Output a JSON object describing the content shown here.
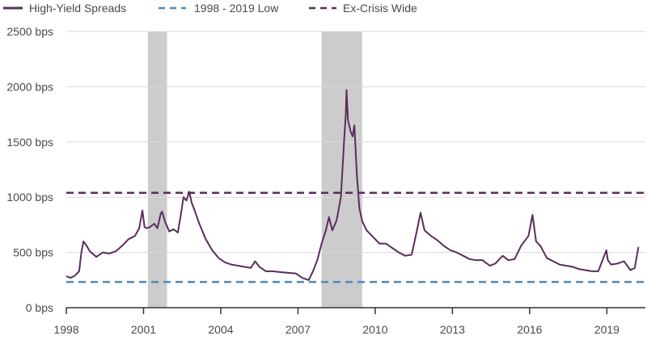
{
  "chart_data": {
    "type": "line",
    "title": "",
    "xlabel": "",
    "ylabel": "",
    "x_range": [
      "1998-01-01",
      "2020-06-30"
    ],
    "ylim": [
      0,
      2500
    ],
    "y_ticks": [
      0,
      500,
      1000,
      1500,
      2000,
      2500
    ],
    "y_tick_labels": [
      "0 bps",
      "500 bps",
      "1000 bps",
      "1500 bps",
      "2000 bps",
      "2500 bps"
    ],
    "x_ticks": [
      "1998-01-01",
      "2001-01-01",
      "2004-01-01",
      "2007-01-01",
      "2010-01-01",
      "2013-01-01",
      "2016-01-01",
      "2019-01-01"
    ],
    "x_tick_labels": [
      "1998",
      "2001",
      "2004",
      "2007",
      "2010",
      "2013",
      "2016",
      "2019"
    ],
    "grid": "horizontal",
    "legend_position": "top-left",
    "legend": [
      {
        "label": "High-Yield Spreads",
        "style": "solid",
        "color": "#5a2d5c"
      },
      {
        "label": "1998 - 2019 Low",
        "style": "dashed",
        "color": "#4a8ac0"
      },
      {
        "label": "Ex-Crisis Wide",
        "style": "dashed",
        "color": "#5a2d5c"
      }
    ],
    "recession_bands": [
      {
        "start": "2001-03-01",
        "end": "2001-11-30"
      },
      {
        "start": "2007-12-01",
        "end": "2009-06-30"
      }
    ],
    "reference_lines": [
      {
        "name": "1998 - 2019 Low",
        "value": 233,
        "color": "#4a8ac0"
      },
      {
        "name": "Ex-Crisis Wide",
        "value": 1040,
        "color": "#5a2d5c"
      }
    ],
    "colors": {
      "series": "#5a2d5c",
      "low_line": "#4a8ac0",
      "wide_line": "#5a2d5c",
      "recession": "#cccccc",
      "grid": "#d9d9d9",
      "axis": "#333333"
    },
    "series": [
      {
        "name": "High-Yield Spreads",
        "x": [
          "1998-01-01",
          "1998-03-01",
          "1998-05-01",
          "1998-07-01",
          "1998-08-01",
          "1998-09-01",
          "1998-10-15",
          "1998-12-01",
          "1999-03-01",
          "1999-06-01",
          "1999-09-01",
          "1999-12-01",
          "2000-03-01",
          "2000-06-01",
          "2000-09-01",
          "2000-11-01",
          "2000-12-15",
          "2001-01-15",
          "2001-02-15",
          "2001-04-01",
          "2001-06-01",
          "2001-07-15",
          "2001-09-01",
          "2001-09-20",
          "2001-11-01",
          "2002-01-01",
          "2002-03-01",
          "2002-05-01",
          "2002-06-15",
          "2002-07-20",
          "2002-09-01",
          "2002-10-10",
          "2002-11-15",
          "2003-01-01",
          "2003-03-01",
          "2003-06-01",
          "2003-09-01",
          "2003-12-01",
          "2004-03-01",
          "2004-06-01",
          "2004-09-01",
          "2004-12-01",
          "2005-03-01",
          "2005-05-01",
          "2005-07-01",
          "2005-10-01",
          "2006-01-01",
          "2006-06-01",
          "2006-12-01",
          "2007-03-01",
          "2007-06-01",
          "2007-08-01",
          "2007-10-01",
          "2007-12-01",
          "2008-02-01",
          "2008-03-15",
          "2008-05-01",
          "2008-07-01",
          "2008-09-01",
          "2008-10-15",
          "2008-11-10",
          "2008-11-20",
          "2008-12-10",
          "2009-01-15",
          "2009-02-15",
          "2009-03-10",
          "2009-04-15",
          "2009-05-20",
          "2009-07-01",
          "2009-09-01",
          "2009-12-01",
          "2010-03-01",
          "2010-06-01",
          "2010-09-01",
          "2010-12-01",
          "2011-03-01",
          "2011-06-01",
          "2011-08-15",
          "2011-10-05",
          "2011-12-01",
          "2012-03-01",
          "2012-06-01",
          "2012-09-01",
          "2012-12-01",
          "2013-03-01",
          "2013-06-01",
          "2013-09-01",
          "2013-12-01",
          "2014-03-01",
          "2014-06-15",
          "2014-09-01",
          "2014-12-15",
          "2015-03-01",
          "2015-06-01",
          "2015-09-01",
          "2015-12-15",
          "2016-02-11",
          "2016-04-01",
          "2016-06-01",
          "2016-09-01",
          "2016-12-01",
          "2017-03-01",
          "2017-06-01",
          "2017-09-01",
          "2017-12-01",
          "2018-03-01",
          "2018-06-01",
          "2018-09-01",
          "2018-12-24",
          "2019-01-15",
          "2019-03-01",
          "2019-06-01",
          "2019-09-01",
          "2019-12-01",
          "2020-02-01",
          "2020-03-23"
        ],
        "values": [
          285,
          270,
          290,
          330,
          500,
          600,
          560,
          510,
          460,
          500,
          490,
          510,
          560,
          620,
          650,
          720,
          880,
          730,
          720,
          730,
          760,
          720,
          850,
          870,
          780,
          690,
          710,
          680,
          850,
          1000,
          970,
          1050,
          950,
          870,
          760,
          620,
          520,
          450,
          410,
          390,
          380,
          370,
          360,
          420,
          370,
          330,
          330,
          320,
          310,
          270,
          250,
          330,
          430,
          580,
          700,
          820,
          700,
          790,
          1000,
          1500,
          1750,
          1970,
          1700,
          1600,
          1550,
          1650,
          1200,
          900,
          780,
          700,
          640,
          580,
          580,
          540,
          500,
          470,
          480,
          700,
          860,
          700,
          650,
          610,
          560,
          520,
          500,
          470,
          440,
          430,
          430,
          380,
          400,
          470,
          430,
          440,
          560,
          650,
          840,
          600,
          560,
          450,
          420,
          390,
          380,
          370,
          350,
          340,
          330,
          330,
          520,
          430,
          390,
          400,
          420,
          340,
          360,
          550
        ]
      }
    ]
  }
}
